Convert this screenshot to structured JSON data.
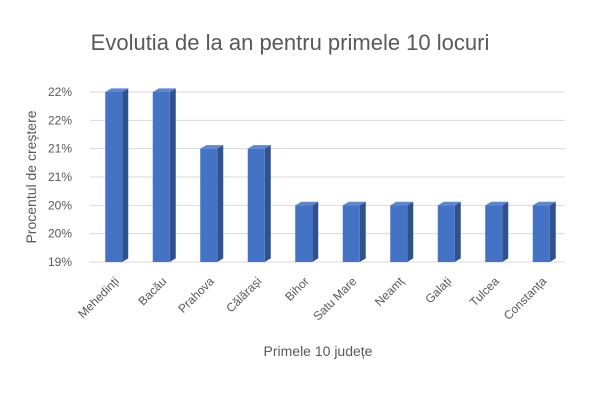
{
  "chart_data": {
    "type": "bar",
    "title": "Evolutia de la an pentru primele 10 locuri",
    "xlabel": "Primele 10 județe",
    "ylabel": "Procentul de creștere",
    "categories": [
      "Mehedinți",
      "Bacău",
      "Prahova",
      "Călărași",
      "Bihor",
      "Satu Mare",
      "Neamț",
      "Galați",
      "Tulcea",
      "Constanța"
    ],
    "values": [
      22.0,
      22.0,
      21.0,
      21.0,
      20.0,
      20.0,
      20.0,
      20.0,
      20.0,
      20.0
    ],
    "ylim": [
      19.0,
      22.0
    ],
    "y_ticks": [
      19.0,
      19.5,
      20.0,
      20.5,
      21.0,
      21.5,
      22.0
    ],
    "y_tick_labels": [
      "19%",
      "20%",
      "20%",
      "21%",
      "21%",
      "22%",
      "22%"
    ],
    "grid": true,
    "legend": "none",
    "bar_color": "#4472c4",
    "bar_side_color": "#2f528f",
    "bar_top_color": "#5b87d6"
  }
}
